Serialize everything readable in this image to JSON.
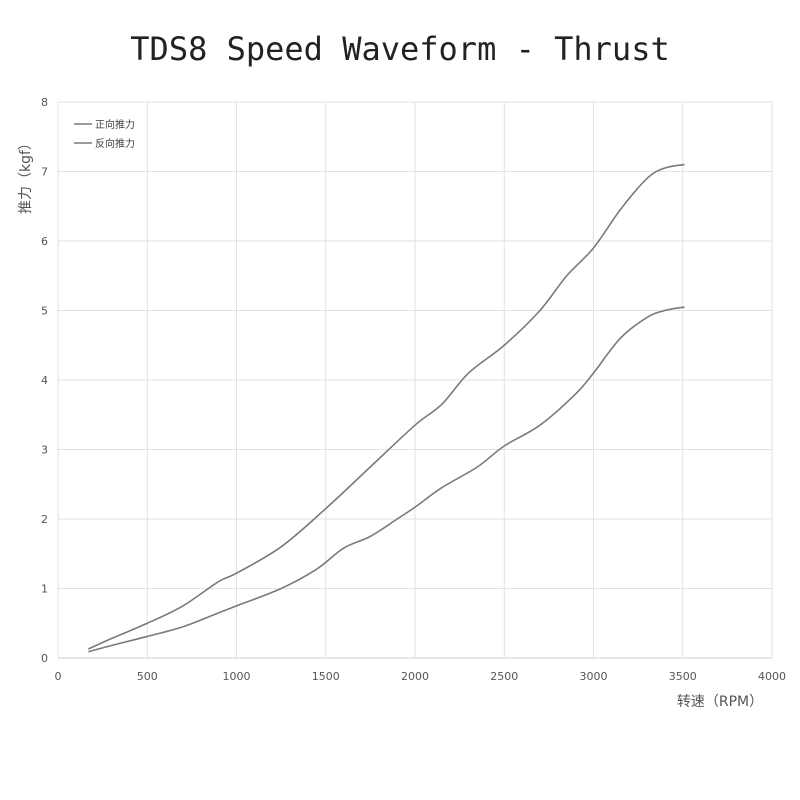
{
  "chart_data": {
    "type": "line",
    "title": "TDS8 Speed Waveform - Thrust",
    "xlabel": "转速（RPM）",
    "ylabel": "推力（kgf）",
    "xlim": [
      0,
      4000
    ],
    "ylim": [
      0,
      8
    ],
    "xticks": [
      "0",
      "500",
      "1000",
      "1500",
      "2000",
      "2500",
      "3000",
      "3500",
      "4000"
    ],
    "yticks": [
      "0",
      "1",
      "2",
      "3",
      "4",
      "5",
      "6",
      "7",
      "8"
    ],
    "grid": true,
    "legend_position": "top-left",
    "series": [
      {
        "name": "正向推力",
        "color": "#7a7a7a",
        "x": [
          170,
          300,
          500,
          700,
          900,
          1000,
          1250,
          1500,
          1750,
          2000,
          2150,
          2300,
          2500,
          2700,
          2850,
          3000,
          3150,
          3300,
          3400,
          3510
        ],
        "y": [
          0.13,
          0.28,
          0.5,
          0.75,
          1.1,
          1.22,
          1.6,
          2.15,
          2.75,
          3.35,
          3.65,
          4.1,
          4.5,
          5.0,
          5.5,
          5.9,
          6.45,
          6.9,
          7.05,
          7.1
        ]
      },
      {
        "name": "反向推力",
        "color": "#7a7a7a",
        "x": [
          170,
          300,
          500,
          700,
          900,
          1000,
          1250,
          1450,
          1600,
          1750,
          1900,
          2000,
          2150,
          2350,
          2500,
          2700,
          2900,
          3000,
          3150,
          3300,
          3400,
          3510
        ],
        "y": [
          0.09,
          0.18,
          0.31,
          0.45,
          0.65,
          0.75,
          1.0,
          1.28,
          1.58,
          1.75,
          2.0,
          2.17,
          2.45,
          2.75,
          3.05,
          3.35,
          3.8,
          4.1,
          4.6,
          4.9,
          5.0,
          5.05
        ]
      }
    ]
  }
}
